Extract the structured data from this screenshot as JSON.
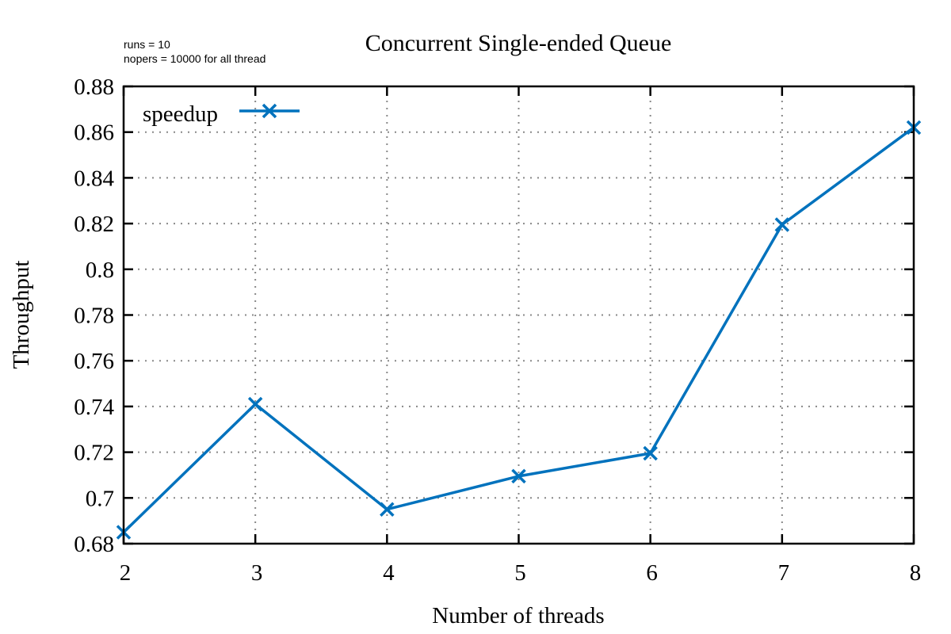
{
  "chart_data": {
    "type": "line",
    "title": "Concurrent Single-ended Queue",
    "annotations": [
      "runs = 10",
      "nopers = 10000 for all thread"
    ],
    "xlabel": "Number of threads",
    "ylabel": "Throughput",
    "xlim": [
      2,
      8
    ],
    "ylim": [
      0.68,
      0.88
    ],
    "xticks": [
      2,
      3,
      4,
      5,
      6,
      7,
      8
    ],
    "yticks": [
      0.68,
      0.7,
      0.72,
      0.74,
      0.76,
      0.78,
      0.8,
      0.82,
      0.84,
      0.86,
      0.88
    ],
    "ytick_labels": [
      "0.68",
      "0.7",
      "0.72",
      "0.74",
      "0.76",
      "0.78",
      "0.8",
      "0.82",
      "0.84",
      "0.86",
      "0.88"
    ],
    "grid": true,
    "legend_position": "top-left",
    "series": [
      {
        "name": "speedup",
        "color": "#0072bd",
        "marker": "x",
        "x": [
          2,
          3,
          4,
          5,
          6,
          7,
          8
        ],
        "y": [
          0.685,
          0.741,
          0.695,
          0.7095,
          0.7195,
          0.8195,
          0.862
        ]
      }
    ]
  }
}
